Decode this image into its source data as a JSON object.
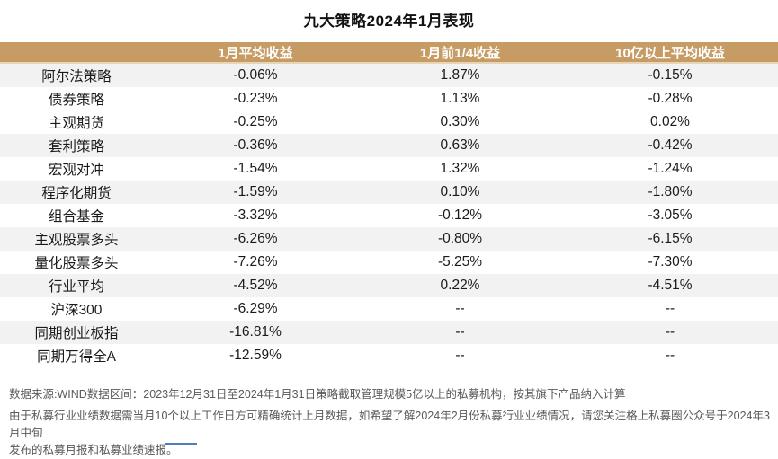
{
  "title": "九大策略2024年1月表现",
  "table": {
    "columns": [
      "",
      "1月平均收益",
      "1月前1/4收益",
      "10亿以上平均收益"
    ],
    "rows": [
      {
        "name": "阿尔法策略",
        "avg": "-0.06%",
        "top_quartile": "1.87%",
        "over_1b": "-0.15%"
      },
      {
        "name": "债券策略",
        "avg": "-0.23%",
        "top_quartile": "1.13%",
        "over_1b": "-0.28%"
      },
      {
        "name": "主观期货",
        "avg": "-0.25%",
        "top_quartile": "0.30%",
        "over_1b": "0.02%"
      },
      {
        "name": "套利策略",
        "avg": "-0.36%",
        "top_quartile": "0.63%",
        "over_1b": "-0.42%"
      },
      {
        "name": "宏观对冲",
        "avg": "-1.54%",
        "top_quartile": "1.32%",
        "over_1b": "-1.24%"
      },
      {
        "name": "程序化期货",
        "avg": "-1.59%",
        "top_quartile": "0.10%",
        "over_1b": "-1.80%"
      },
      {
        "name": "组合基金",
        "avg": "-3.32%",
        "top_quartile": "-0.12%",
        "over_1b": "-3.05%"
      },
      {
        "name": "主观股票多头",
        "avg": "-6.26%",
        "top_quartile": "-0.80%",
        "over_1b": "-6.15%"
      },
      {
        "name": "量化股票多头",
        "avg": "-7.26%",
        "top_quartile": "-5.25%",
        "over_1b": "-7.30%"
      },
      {
        "name": "行业平均",
        "avg": "-4.52%",
        "top_quartile": "0.22%",
        "over_1b": "-4.51%"
      },
      {
        "name": "沪深300",
        "avg": "-6.29%",
        "top_quartile": "--",
        "over_1b": "--"
      },
      {
        "name": "同期创业板指",
        "avg": "-16.81%",
        "top_quartile": "--",
        "over_1b": "--"
      },
      {
        "name": "同期万得全A",
        "avg": "-12.59%",
        "top_quartile": "--",
        "over_1b": "--"
      }
    ]
  },
  "footnotes": {
    "line1": "数据来源:WIND数据区间：2023年12月31日至2024年1月31日策略截取管理规模5亿以上的私募机构，按其旗下产品纳入计算",
    "line2": "由于私募行业业绩数据需当月10个以上工作日方可精确统计上月数据，如希望了解2024年2月份私募行业业绩情况，请您关注格上私募圈公众号于2024年3月中旬",
    "line3": "发布的私募月报和私募业绩速报。"
  },
  "colors": {
    "header_bg": "#c79c64",
    "row_shaded": "#f2f2f2",
    "footnote_text": "#595959",
    "cutoff_accent": "#4a7ebc"
  }
}
